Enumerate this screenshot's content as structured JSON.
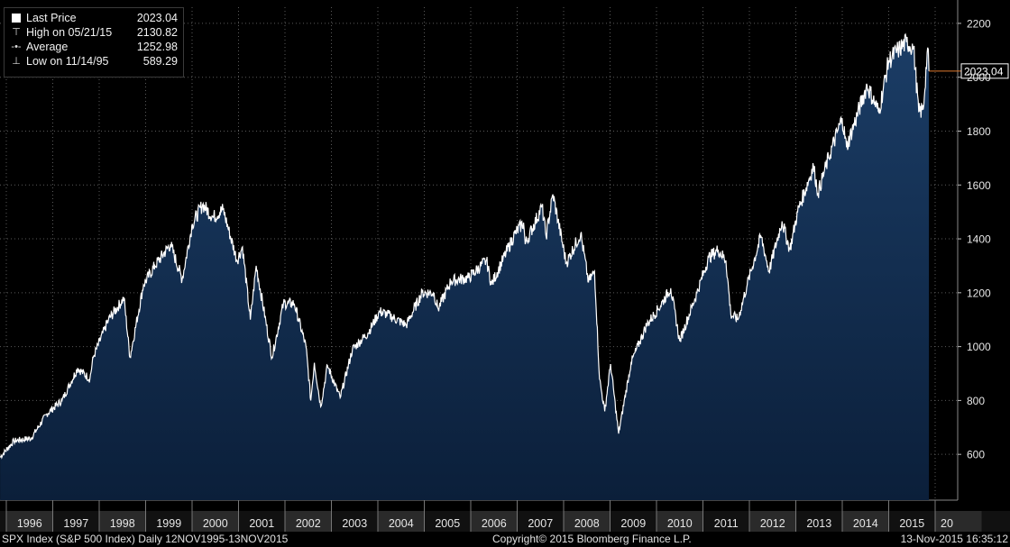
{
  "chart_data": {
    "type": "area",
    "series": [
      {
        "name": "Last Price",
        "x": [
          "1995-11-13",
          "1996-03-01",
          "1996-07-15",
          "1996-11-15",
          "1997-03-15",
          "1997-07-15",
          "1997-10-20",
          "1997-11-15",
          "1998-03-15",
          "1998-07-15",
          "1998-08-31",
          "1998-12-15",
          "1999-03-15",
          "1999-07-15",
          "1999-10-15",
          "2000-01-03",
          "2000-03-24",
          "2000-06-15",
          "2000-09-01",
          "2000-12-20",
          "2001-02-01",
          "2001-04-04",
          "2001-05-20",
          "2001-09-21",
          "2001-12-20",
          "2002-03-15",
          "2002-06-15",
          "2002-07-23",
          "2002-08-20",
          "2002-10-09",
          "2002-12-01",
          "2003-03-11",
          "2003-06-15",
          "2003-10-15",
          "2004-01-15",
          "2004-03-15",
          "2004-08-12",
          "2004-12-15",
          "2005-03-15",
          "2005-04-20",
          "2005-08-01",
          "2005-12-15",
          "2006-05-05",
          "2006-06-13",
          "2006-12-15",
          "2007-02-20",
          "2007-03-05",
          "2007-07-15",
          "2007-08-16",
          "2007-10-09",
          "2008-01-22",
          "2008-05-15",
          "2008-07-15",
          "2008-09-01",
          "2008-10-10",
          "2008-11-20",
          "2009-01-05",
          "2009-03-09",
          "2009-06-15",
          "2009-10-15",
          "2010-01-15",
          "2010-04-23",
          "2010-07-02",
          "2010-11-15",
          "2011-02-15",
          "2011-05-01",
          "2011-07-01",
          "2011-08-08",
          "2011-10-03",
          "2011-12-15",
          "2012-04-01",
          "2012-06-04",
          "2012-09-14",
          "2012-11-15",
          "2013-01-15",
          "2013-05-20",
          "2013-06-24",
          "2013-09-15",
          "2013-12-31",
          "2014-02-03",
          "2014-07-15",
          "2014-10-15",
          "2014-12-31",
          "2015-03-15",
          "2015-05-21",
          "2015-07-15",
          "2015-08-25",
          "2015-09-29",
          "2015-11-03",
          "2015-11-13"
        ],
        "values": [
          589,
          650,
          660,
          750,
          800,
          920,
          880,
          960,
          1100,
          1180,
          960,
          1230,
          1300,
          1380,
          1250,
          1455,
          1527,
          1480,
          1510,
          1320,
          1370,
          1100,
          1300,
          960,
          1160,
          1160,
          1000,
          800,
          940,
          777,
          930,
          810,
          990,
          1050,
          1130,
          1120,
          1080,
          1200,
          1200,
          1140,
          1245,
          1255,
          1320,
          1230,
          1420,
          1460,
          1380,
          1520,
          1410,
          1565,
          1310,
          1420,
          1240,
          1280,
          880,
          760,
          935,
          677,
          940,
          1080,
          1140,
          1217,
          1020,
          1200,
          1330,
          1360,
          1320,
          1120,
          1100,
          1230,
          1410,
          1280,
          1465,
          1360,
          1500,
          1670,
          1570,
          1700,
          1848,
          1740,
          1970,
          1870,
          2060,
          2100,
          2130,
          2110,
          1870,
          1880,
          2110,
          2023
        ]
      }
    ],
    "y_ticks": [
      600,
      800,
      1000,
      1200,
      1400,
      1600,
      1800,
      2000,
      2200
    ],
    "x_tick_labels": [
      "1996",
      "1997",
      "1998",
      "1999",
      "2000",
      "2001",
      "2002",
      "2003",
      "2004",
      "2005",
      "2006",
      "2007",
      "2008",
      "2009",
      "2010",
      "2011",
      "2012",
      "2013",
      "2014",
      "2015",
      "20"
    ],
    "ylim": [
      430,
      2260
    ],
    "last_value_label": "2023.04",
    "grid": true,
    "legend_position": "top-left",
    "colors": {
      "line": "#ffffff",
      "fill_top": "#1b3d66",
      "fill_bottom": "#0b1f3a",
      "grid": "#5a5a5a",
      "last_marker": "#e07a2f",
      "axis_text": "#e6e6e6",
      "year_band": "#2a2a2a"
    }
  },
  "legend": {
    "rows": [
      {
        "symbol": "square",
        "label": "Last Price",
        "value": "2023.04"
      },
      {
        "symbol": "high-marker",
        "label": "High on 05/21/15",
        "value": "2130.82"
      },
      {
        "symbol": "average-marker",
        "label": "Average",
        "value": "1252.98"
      },
      {
        "symbol": "low-marker",
        "label": "Low on 11/14/95",
        "value": "589.29"
      }
    ]
  },
  "footer": {
    "left": "SPX Index (S&P 500 Index)  Daily 12NOV1995-13NOV2015",
    "center": "Copyright© 2015 Bloomberg Finance L.P.",
    "right": "13-Nov-2015 16:35:12"
  }
}
